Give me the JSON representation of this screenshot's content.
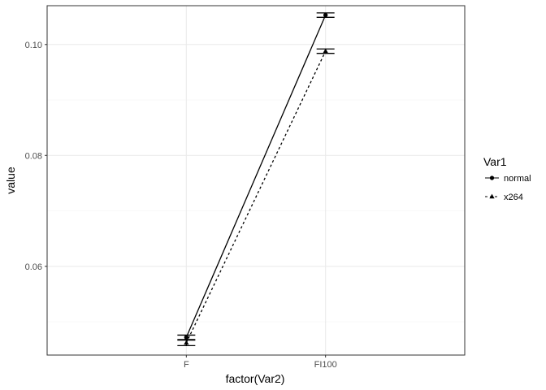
{
  "chart_data": {
    "type": "line",
    "title": "",
    "xlabel": "factor(Var2)",
    "ylabel": "value",
    "categories": [
      "F",
      "FI100"
    ],
    "y_ticks": [
      "0.06",
      "0.08",
      "0.10"
    ],
    "ylim": [
      0.044,
      0.107
    ],
    "grid": true,
    "legend": {
      "title": "Var1",
      "placement": "right"
    },
    "series": [
      {
        "name": "normal",
        "values": [
          0.0472,
          0.1053
        ],
        "error": [
          0.0004,
          0.0004
        ],
        "linestyle": "solid",
        "marker": "circle"
      },
      {
        "name": "x264",
        "values": [
          0.0462,
          0.0988
        ],
        "error": [
          0.0005,
          0.0004
        ],
        "linestyle": "dashed",
        "marker": "triangle"
      }
    ]
  },
  "colors": {
    "line": "#000000",
    "grid_major": "#ebebeb",
    "grid_minor": "#f5f5f5",
    "panel_border": "#333333",
    "tick_text": "#4d4d4d"
  }
}
